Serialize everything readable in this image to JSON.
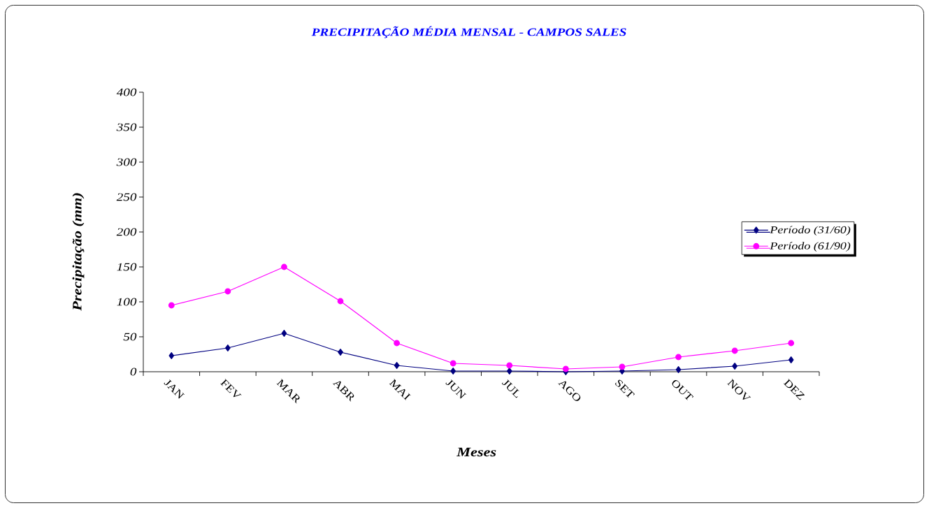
{
  "chart_data": {
    "type": "line",
    "title": "PRECIPITAÇÃO MÉDIA MENSAL - CAMPOS SALES",
    "xlabel": "Meses",
    "ylabel": "Precipitação (mm)",
    "categories": [
      "JAN",
      "FEV",
      "MAR",
      "ABR",
      "MAI",
      "JUN",
      "JUL",
      "AGO",
      "SET",
      "OUT",
      "NOV",
      "DEZ"
    ],
    "series": [
      {
        "name": "Período (31/60)",
        "color": "#000080",
        "marker": "diamond",
        "values": [
          23,
          34,
          55,
          28,
          9,
          1,
          1,
          0,
          1,
          3,
          8,
          17
        ]
      },
      {
        "name": "Período (61/90)",
        "color": "#ff00ff",
        "marker": "circle",
        "values": [
          95,
          115,
          150,
          101,
          41,
          12,
          9,
          4,
          7,
          21,
          30,
          41
        ]
      }
    ],
    "ylim": [
      0,
      400
    ],
    "yticks": [
      0,
      50,
      100,
      150,
      200,
      250,
      300,
      350,
      400
    ],
    "legend": "right"
  }
}
